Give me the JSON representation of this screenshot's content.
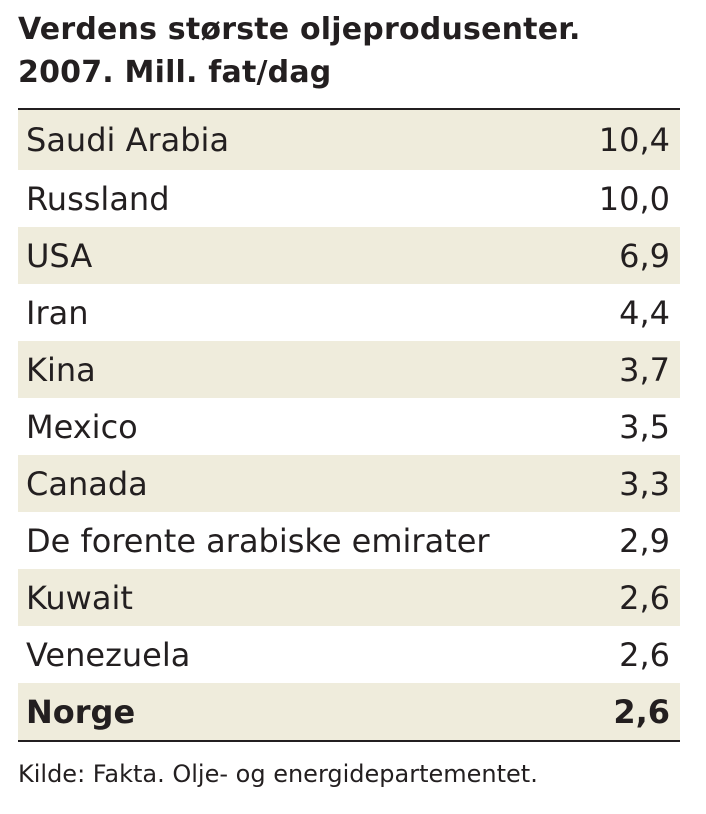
{
  "header": {
    "title": [
      "Verdens største oljeprodusenter.",
      "2007. Mill. fat/dag"
    ]
  },
  "table": {
    "rows": [
      [
        "Saudi Arabia",
        "10,4"
      ],
      [
        "Russland",
        "10,0"
      ],
      [
        "USA",
        "6,9"
      ],
      [
        "Iran",
        "4,4"
      ],
      [
        "Kina",
        "3,7"
      ],
      [
        "Mexico",
        "3,5"
      ],
      [
        "Canada",
        "3,3"
      ],
      [
        "De forente arabiske emirater",
        "2,9"
      ],
      [
        "Kuwait",
        "2,6"
      ],
      [
        "Venezuela",
        "2,6"
      ],
      [
        "Norge",
        "2,6"
      ]
    ]
  },
  "source": "Kilde: Fakta. Olje- og energidepartementet."
}
